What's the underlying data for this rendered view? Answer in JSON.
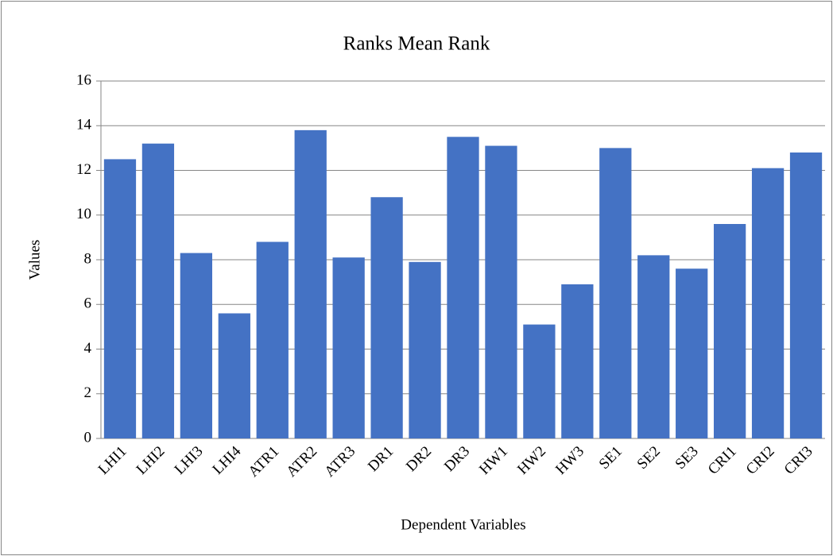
{
  "chart_data": {
    "type": "bar",
    "title": "Ranks Mean Rank",
    "x_label": "Dependent Variables",
    "y_label": "Values",
    "categories": [
      "LHI1",
      "LHI2",
      "LHI3",
      "LHI4",
      "ATR1",
      "ATR2",
      "ATR3",
      "DR1",
      "DR2",
      "DR3",
      "HW1",
      "HW2",
      "HW3",
      "SE1",
      "SE2",
      "SE3",
      "CRI1",
      "CRI2",
      "CRI3"
    ],
    "values": [
      12.5,
      13.2,
      8.3,
      5.6,
      8.8,
      13.8,
      8.1,
      10.8,
      7.9,
      13.5,
      13.1,
      5.1,
      6.9,
      13.0,
      8.2,
      7.6,
      9.6,
      12.1,
      12.8
    ],
    "color": "#4472c4",
    "ylim": [
      0,
      16
    ],
    "yticks": [
      0,
      2,
      4,
      6,
      8,
      10,
      12,
      14,
      16
    ],
    "grid": true
  }
}
